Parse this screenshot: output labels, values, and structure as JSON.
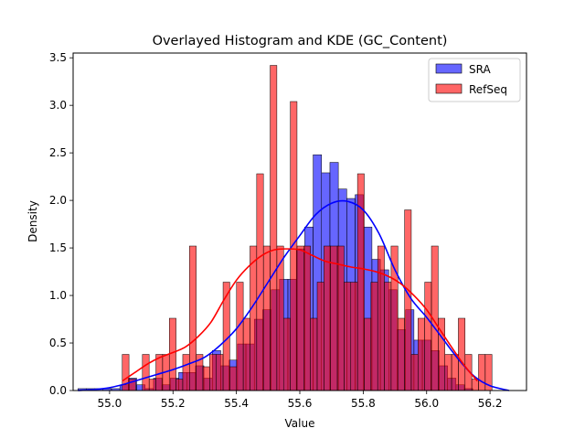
{
  "chart_data": {
    "type": "histogram+kde",
    "title": "Overlayed Histogram and KDE (GC_Content)",
    "xlabel": "Value",
    "ylabel": "Density",
    "xlim": [
      54.885,
      56.315
    ],
    "ylim": [
      0,
      3.55
    ],
    "xticks": [
      {
        "value": 55.0,
        "label": "55.0"
      },
      {
        "value": 55.2,
        "label": "55.2"
      },
      {
        "value": 55.4,
        "label": "55.4"
      },
      {
        "value": 55.6,
        "label": "55.6"
      },
      {
        "value": 55.8,
        "label": "55.8"
      },
      {
        "value": 56.0,
        "label": "56.0"
      },
      {
        "value": 56.2,
        "label": "56.2"
      }
    ],
    "yticks": [
      {
        "value": 0.0,
        "label": "0.0"
      },
      {
        "value": 0.5,
        "label": "0.5"
      },
      {
        "value": 1.0,
        "label": "1.0"
      },
      {
        "value": 1.5,
        "label": "1.5"
      },
      {
        "value": 2.0,
        "label": "2.0"
      },
      {
        "value": 2.5,
        "label": "2.5"
      },
      {
        "value": 3.0,
        "label": "3.0"
      },
      {
        "value": 3.5,
        "label": "3.5"
      }
    ],
    "legend": {
      "placement": "top-right"
    },
    "series": [
      {
        "name": "SRA",
        "color": "#0000ff",
        "bin_start": 54.9,
        "bin_width": 0.0265,
        "values": [
          0.02,
          0.02,
          0.02,
          0.02,
          0.02,
          0.06,
          0.13,
          0.06,
          0.02,
          0.13,
          0.06,
          0.13,
          0.19,
          0.19,
          0.26,
          0.13,
          0.42,
          0.26,
          0.32,
          0.49,
          0.49,
          0.75,
          0.85,
          1.06,
          1.17,
          1.17,
          1.49,
          1.72,
          2.48,
          2.29,
          2.4,
          2.12,
          2.02,
          2.06,
          1.72,
          1.38,
          1.27,
          1.06,
          0.64,
          0.85,
          0.53,
          0.53,
          0.42,
          0.26,
          0.13,
          0.06,
          0.02
        ],
        "kde": {
          "x": [
            54.9,
            54.95,
            55.0,
            55.05,
            55.1,
            55.15,
            55.2,
            55.25,
            55.3,
            55.35,
            55.4,
            55.45,
            55.5,
            55.55,
            55.6,
            55.65,
            55.7,
            55.75,
            55.8,
            55.85,
            55.9,
            55.95,
            56.0,
            56.05,
            56.1,
            56.15,
            56.2,
            56.26
          ],
          "y": [
            0.0,
            0.01,
            0.03,
            0.07,
            0.12,
            0.17,
            0.22,
            0.28,
            0.35,
            0.48,
            0.65,
            0.88,
            1.14,
            1.4,
            1.63,
            1.85,
            1.97,
            1.99,
            1.9,
            1.65,
            1.27,
            0.97,
            0.77,
            0.55,
            0.33,
            0.15,
            0.05,
            0.0
          ]
        }
      },
      {
        "name": "RefSeq",
        "color": "#ff0000",
        "bin_start": 55.04,
        "bin_width": 0.0212,
        "values": [
          0.38,
          0.12,
          0.0,
          0.38,
          0.12,
          0.38,
          0.38,
          0.76,
          0.12,
          0.38,
          1.52,
          0.38,
          0.25,
          0.38,
          0.38,
          1.14,
          0.25,
          1.14,
          0.76,
          1.52,
          2.28,
          1.52,
          3.42,
          1.52,
          0.76,
          3.04,
          1.52,
          1.52,
          0.76,
          1.14,
          1.52,
          1.52,
          1.52,
          1.14,
          1.14,
          2.28,
          0.76,
          1.14,
          1.52,
          1.14,
          1.52,
          0.76,
          1.9,
          0.38,
          0.76,
          1.14,
          1.52,
          0.76,
          0.38,
          0.38,
          0.76,
          0.38,
          0.12,
          0.38,
          0.38
        ],
        "kde": {
          "x": [
            55.04,
            55.08,
            55.12,
            55.16,
            55.2,
            55.24,
            55.28,
            55.32,
            55.36,
            55.4,
            55.44,
            55.48,
            55.52,
            55.56,
            55.6,
            55.64,
            55.68,
            55.72,
            55.76,
            55.8,
            55.84,
            55.88,
            55.92,
            55.96,
            56.0,
            56.04,
            56.08,
            56.12,
            56.16
          ],
          "y": [
            0.1,
            0.19,
            0.28,
            0.35,
            0.4,
            0.46,
            0.57,
            0.72,
            0.95,
            1.16,
            1.31,
            1.42,
            1.48,
            1.49,
            1.48,
            1.42,
            1.36,
            1.33,
            1.3,
            1.28,
            1.25,
            1.2,
            1.12,
            1.0,
            0.85,
            0.65,
            0.45,
            0.26,
            0.1
          ]
        }
      }
    ]
  }
}
